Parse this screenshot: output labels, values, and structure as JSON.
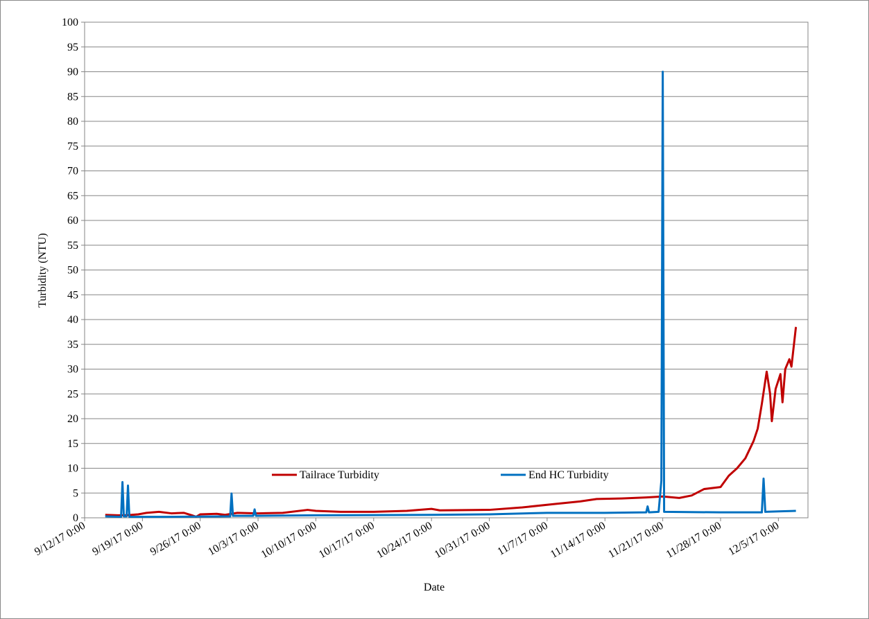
{
  "chart_data": {
    "type": "line",
    "xlabel": "Date",
    "ylabel": "Turbidity (NTU)",
    "xlim": [
      "2017-09-12T00:00",
      "2017-12-08T14:00"
    ],
    "xticks": [
      {
        "value": "2017-09-12T00:00",
        "label": "9/12/17 0:00"
      },
      {
        "value": "2017-09-19T00:00",
        "label": "9/19/17 0:00"
      },
      {
        "value": "2017-09-26T00:00",
        "label": "9/26/17 0:00"
      },
      {
        "value": "2017-10-03T00:00",
        "label": "10/3/17 0:00"
      },
      {
        "value": "2017-10-10T00:00",
        "label": "10/10/17 0:00"
      },
      {
        "value": "2017-10-17T00:00",
        "label": "10/17/17 0:00"
      },
      {
        "value": "2017-10-24T00:00",
        "label": "10/24/17 0:00"
      },
      {
        "value": "2017-10-31T00:00",
        "label": "10/31/17 0:00"
      },
      {
        "value": "2017-11-07T00:00",
        "label": "11/7/17 0:00"
      },
      {
        "value": "2017-11-14T00:00",
        "label": "11/14/17 0:00"
      },
      {
        "value": "2017-11-21T00:00",
        "label": "11/21/17 0:00"
      },
      {
        "value": "2017-11-28T00:00",
        "label": "11/28/17 0:00"
      },
      {
        "value": "2017-12-05T00:00",
        "label": "12/5/17 0:00"
      }
    ],
    "ylim": [
      0,
      100
    ],
    "yticks": [
      0,
      5,
      10,
      15,
      20,
      25,
      30,
      35,
      40,
      45,
      50,
      55,
      60,
      65,
      70,
      75,
      80,
      85,
      90,
      95,
      100
    ],
    "grid": true,
    "legend": "inside-bottom",
    "series": [
      {
        "name": "Tailrace Turbidity",
        "color": "#c00000",
        "x": [
          "2017-09-14T12:00",
          "2017-09-16T00:00",
          "2017-09-17T00:00",
          "2017-09-18T12:00",
          "2017-09-19T12:00",
          "2017-09-21T00:00",
          "2017-09-22T12:00",
          "2017-09-24T00:00",
          "2017-09-25T00:00",
          "2017-09-25T12:00",
          "2017-09-26T00:00",
          "2017-09-28T00:00",
          "2017-09-29T00:00",
          "2017-09-30T12:00",
          "2017-10-03T00:00",
          "2017-10-06T00:00",
          "2017-10-09T00:00",
          "2017-10-10T00:00",
          "2017-10-13T00:00",
          "2017-10-17T00:00",
          "2017-10-21T00:00",
          "2017-10-24T00:00",
          "2017-10-25T00:00",
          "2017-10-31T00:00",
          "2017-11-04T00:00",
          "2017-11-08T00:00",
          "2017-11-11T00:00",
          "2017-11-13T00:00",
          "2017-11-16T00:00",
          "2017-11-19T00:00",
          "2017-11-21T00:00",
          "2017-11-23T00:00",
          "2017-11-24T12:00",
          "2017-11-26T00:00",
          "2017-11-28T00:00",
          "2017-11-29T00:00",
          "2017-11-30T00:00",
          "2017-12-01T00:00",
          "2017-12-02T00:00",
          "2017-12-02T12:00",
          "2017-12-03T00:00",
          "2017-12-03T14:00",
          "2017-12-04T00:00",
          "2017-12-04T05:00",
          "2017-12-04T16:00",
          "2017-12-05T06:00",
          "2017-12-05T12:00",
          "2017-12-05T20:00",
          "2017-12-06T08:00",
          "2017-12-06T14:00",
          "2017-12-07T03:00"
        ],
        "values": [
          0.6,
          0.5,
          0.5,
          0.7,
          1.0,
          1.2,
          0.9,
          1.0,
          0.5,
          0.2,
          0.7,
          0.8,
          0.6,
          1.0,
          0.9,
          1.0,
          1.6,
          1.4,
          1.2,
          1.2,
          1.4,
          1.8,
          1.5,
          1.6,
          2.1,
          2.8,
          3.3,
          3.8,
          3.9,
          4.1,
          4.3,
          4.0,
          4.5,
          5.8,
          6.2,
          8.5,
          10,
          12,
          15.5,
          18,
          23,
          29.5,
          25,
          19.5,
          26,
          29,
          23.3,
          30,
          32,
          30.5,
          38.5
        ]
      },
      {
        "name": "End HC Turbidity",
        "color": "#0070c0",
        "x": [
          "2017-09-14T12:00",
          "2017-09-16T10:00",
          "2017-09-16T14:00",
          "2017-09-16T18:00",
          "2017-09-17T02:00",
          "2017-09-17T06:00",
          "2017-09-17T10:00",
          "2017-09-22T00:00",
          "2017-09-29T15:00",
          "2017-09-29T19:00",
          "2017-09-29T23:00",
          "2017-10-02T10:00",
          "2017-10-02T14:00",
          "2017-10-02T18:00",
          "2017-10-10T00:00",
          "2017-10-24T00:00",
          "2017-10-31T00:00",
          "2017-11-07T00:00",
          "2017-11-14T00:00",
          "2017-11-19T00:00",
          "2017-11-19T04:00",
          "2017-11-19T08:00",
          "2017-11-20T12:00",
          "2017-11-20T20:00",
          "2017-11-21T00:00",
          "2017-11-21T04:00",
          "2017-11-28T00:00",
          "2017-12-03T00:00",
          "2017-12-03T05:00",
          "2017-12-03T10:00",
          "2017-12-05T00:00",
          "2017-12-07T03:00"
        ],
        "values": [
          0.3,
          0.2,
          7.2,
          0.3,
          0.3,
          6.5,
          0.2,
          0.2,
          0.3,
          4.9,
          0.4,
          0.4,
          1.7,
          0.4,
          0.5,
          0.6,
          0.7,
          1.0,
          1.0,
          1.1,
          2.3,
          1.1,
          1.2,
          7.5,
          90,
          1.2,
          1.1,
          1.1,
          7.9,
          1.2,
          1.3,
          1.4
        ]
      }
    ]
  }
}
